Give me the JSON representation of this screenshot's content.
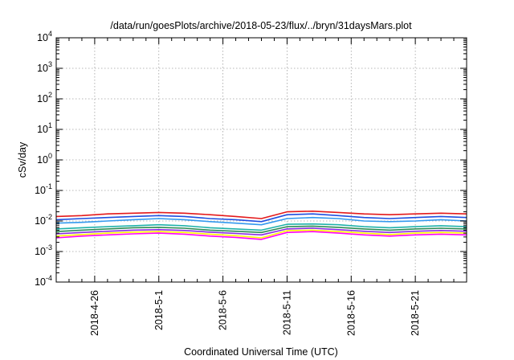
{
  "chart_data": {
    "type": "line",
    "title": "/data/run/goesPlots/archive/2018-05-23/flux/../bryn/31daysMars.plot",
    "xlabel": "Coordinated Universal Time (UTC)",
    "ylabel": "cSv/day",
    "yscale": "log",
    "ylim": [
      0.0001,
      10000
    ],
    "xlim": [
      "2018-04-23",
      "2018-05-25"
    ],
    "grid": true,
    "ytick_labels": [
      {
        "value": 0.0001,
        "base": "10",
        "exp": "-4"
      },
      {
        "value": 0.001,
        "base": "10",
        "exp": "-3"
      },
      {
        "value": 0.01,
        "base": "10",
        "exp": "-2"
      },
      {
        "value": 0.1,
        "base": "10",
        "exp": "-1"
      },
      {
        "value": 1,
        "base": "10",
        "exp": "0"
      },
      {
        "value": 10,
        "base": "10",
        "exp": "1"
      },
      {
        "value": 100,
        "base": "10",
        "exp": "2"
      },
      {
        "value": 1000,
        "base": "10",
        "exp": "3"
      },
      {
        "value": 10000,
        "base": "10",
        "exp": "4"
      }
    ],
    "xtick_labels": [
      {
        "date": "2018-04-26",
        "label": "2018-4-26"
      },
      {
        "date": "2018-05-01",
        "label": "2018-5-1"
      },
      {
        "date": "2018-05-06",
        "label": "2018-5-6"
      },
      {
        "date": "2018-05-11",
        "label": "2018-5-11"
      },
      {
        "date": "2018-05-16",
        "label": "2018-5-16"
      },
      {
        "date": "2018-05-21",
        "label": "2018-5-21"
      }
    ],
    "series": [
      {
        "color": "#e41a1c",
        "x": [
          "2018-04-23",
          "2018-04-25",
          "2018-04-27",
          "2018-04-29",
          "2018-05-01",
          "2018-05-03",
          "2018-05-05",
          "2018-05-07",
          "2018-05-09",
          "2018-05-11",
          "2018-05-13",
          "2018-05-15",
          "2018-05-17",
          "2018-05-19",
          "2018-05-21",
          "2018-05-23",
          "2018-05-25"
        ],
        "values": [
          0.014,
          0.015,
          0.017,
          0.018,
          0.019,
          0.018,
          0.016,
          0.014,
          0.012,
          0.02,
          0.021,
          0.019,
          0.017,
          0.016,
          0.017,
          0.018,
          0.017
        ]
      },
      {
        "color": "#1f4fe0",
        "x": [
          "2018-04-23",
          "2018-04-25",
          "2018-04-27",
          "2018-04-29",
          "2018-05-01",
          "2018-05-03",
          "2018-05-05",
          "2018-05-07",
          "2018-05-09",
          "2018-05-11",
          "2018-05-13",
          "2018-05-15",
          "2018-05-17",
          "2018-05-19",
          "2018-05-21",
          "2018-05-23",
          "2018-05-25"
        ],
        "values": [
          0.011,
          0.012,
          0.013,
          0.014,
          0.015,
          0.014,
          0.012,
          0.011,
          0.0095,
          0.016,
          0.017,
          0.015,
          0.013,
          0.012,
          0.013,
          0.014,
          0.013
        ]
      },
      {
        "color": "#3399ee",
        "x": [
          "2018-04-23",
          "2018-04-25",
          "2018-04-27",
          "2018-04-29",
          "2018-05-01",
          "2018-05-03",
          "2018-05-05",
          "2018-05-07",
          "2018-05-09",
          "2018-05-11",
          "2018-05-13",
          "2018-05-15",
          "2018-05-17",
          "2018-05-19",
          "2018-05-21",
          "2018-05-23",
          "2018-05-25"
        ],
        "values": [
          0.0085,
          0.009,
          0.01,
          0.011,
          0.012,
          0.011,
          0.0095,
          0.0085,
          0.0075,
          0.012,
          0.013,
          0.012,
          0.01,
          0.0095,
          0.01,
          0.011,
          0.01
        ]
      },
      {
        "color": "#20b2aa",
        "x": [
          "2018-04-23",
          "2018-04-25",
          "2018-04-27",
          "2018-04-29",
          "2018-05-01",
          "2018-05-03",
          "2018-05-05",
          "2018-05-07",
          "2018-05-09",
          "2018-05-11",
          "2018-05-13",
          "2018-05-15",
          "2018-05-17",
          "2018-05-19",
          "2018-05-21",
          "2018-05-23",
          "2018-05-25"
        ],
        "values": [
          0.0055,
          0.006,
          0.0065,
          0.007,
          0.0075,
          0.007,
          0.006,
          0.0055,
          0.005,
          0.0078,
          0.008,
          0.0075,
          0.0065,
          0.006,
          0.0065,
          0.007,
          0.0065
        ]
      },
      {
        "color": "#2e8b57",
        "x": [
          "2018-04-23",
          "2018-04-25",
          "2018-04-27",
          "2018-04-29",
          "2018-05-01",
          "2018-05-03",
          "2018-05-05",
          "2018-05-07",
          "2018-05-09",
          "2018-05-11",
          "2018-05-13",
          "2018-05-15",
          "2018-05-17",
          "2018-05-19",
          "2018-05-21",
          "2018-05-23",
          "2018-05-25"
        ],
        "values": [
          0.0045,
          0.005,
          0.0055,
          0.006,
          0.0062,
          0.0058,
          0.005,
          0.0046,
          0.0042,
          0.0065,
          0.0068,
          0.0062,
          0.0055,
          0.005,
          0.0055,
          0.0058,
          0.0055
        ]
      },
      {
        "color": "#8a2be2",
        "x": [
          "2018-04-23",
          "2018-04-25",
          "2018-04-27",
          "2018-04-29",
          "2018-05-01",
          "2018-05-03",
          "2018-05-05",
          "2018-05-07",
          "2018-05-09",
          "2018-05-11",
          "2018-05-13",
          "2018-05-15",
          "2018-05-17",
          "2018-05-19",
          "2018-05-21",
          "2018-05-23",
          "2018-05-25"
        ],
        "values": [
          0.0038,
          0.0042,
          0.0046,
          0.005,
          0.0052,
          0.0049,
          0.0043,
          0.0039,
          0.0035,
          0.0055,
          0.0058,
          0.0052,
          0.0046,
          0.0042,
          0.0046,
          0.0049,
          0.0046
        ]
      },
      {
        "color": "#ffff00",
        "x": [
          "2018-04-23",
          "2018-04-25",
          "2018-04-27",
          "2018-04-29",
          "2018-05-01",
          "2018-05-03",
          "2018-05-05",
          "2018-05-07",
          "2018-05-09",
          "2018-05-11",
          "2018-05-13",
          "2018-05-15",
          "2018-05-17",
          "2018-05-19",
          "2018-05-21",
          "2018-05-23",
          "2018-05-25"
        ],
        "values": [
          0.0032,
          0.0036,
          0.004,
          0.0043,
          0.0045,
          0.0042,
          0.0037,
          0.0033,
          0.0028,
          0.0048,
          0.005,
          0.0045,
          0.004,
          0.0036,
          0.004,
          0.0042,
          0.004
        ]
      },
      {
        "color": "#ff00ff",
        "x": [
          "2018-04-23",
          "2018-04-25",
          "2018-04-27",
          "2018-04-29",
          "2018-05-01",
          "2018-05-03",
          "2018-05-05",
          "2018-05-07",
          "2018-05-09",
          "2018-05-11",
          "2018-05-13",
          "2018-05-15",
          "2018-05-17",
          "2018-05-19",
          "2018-05-21",
          "2018-05-23",
          "2018-05-25"
        ],
        "values": [
          0.0028,
          0.0032,
          0.0035,
          0.0038,
          0.004,
          0.0037,
          0.0032,
          0.0029,
          0.0025,
          0.0042,
          0.0045,
          0.004,
          0.0035,
          0.0032,
          0.0035,
          0.0037,
          0.0035
        ]
      }
    ]
  }
}
